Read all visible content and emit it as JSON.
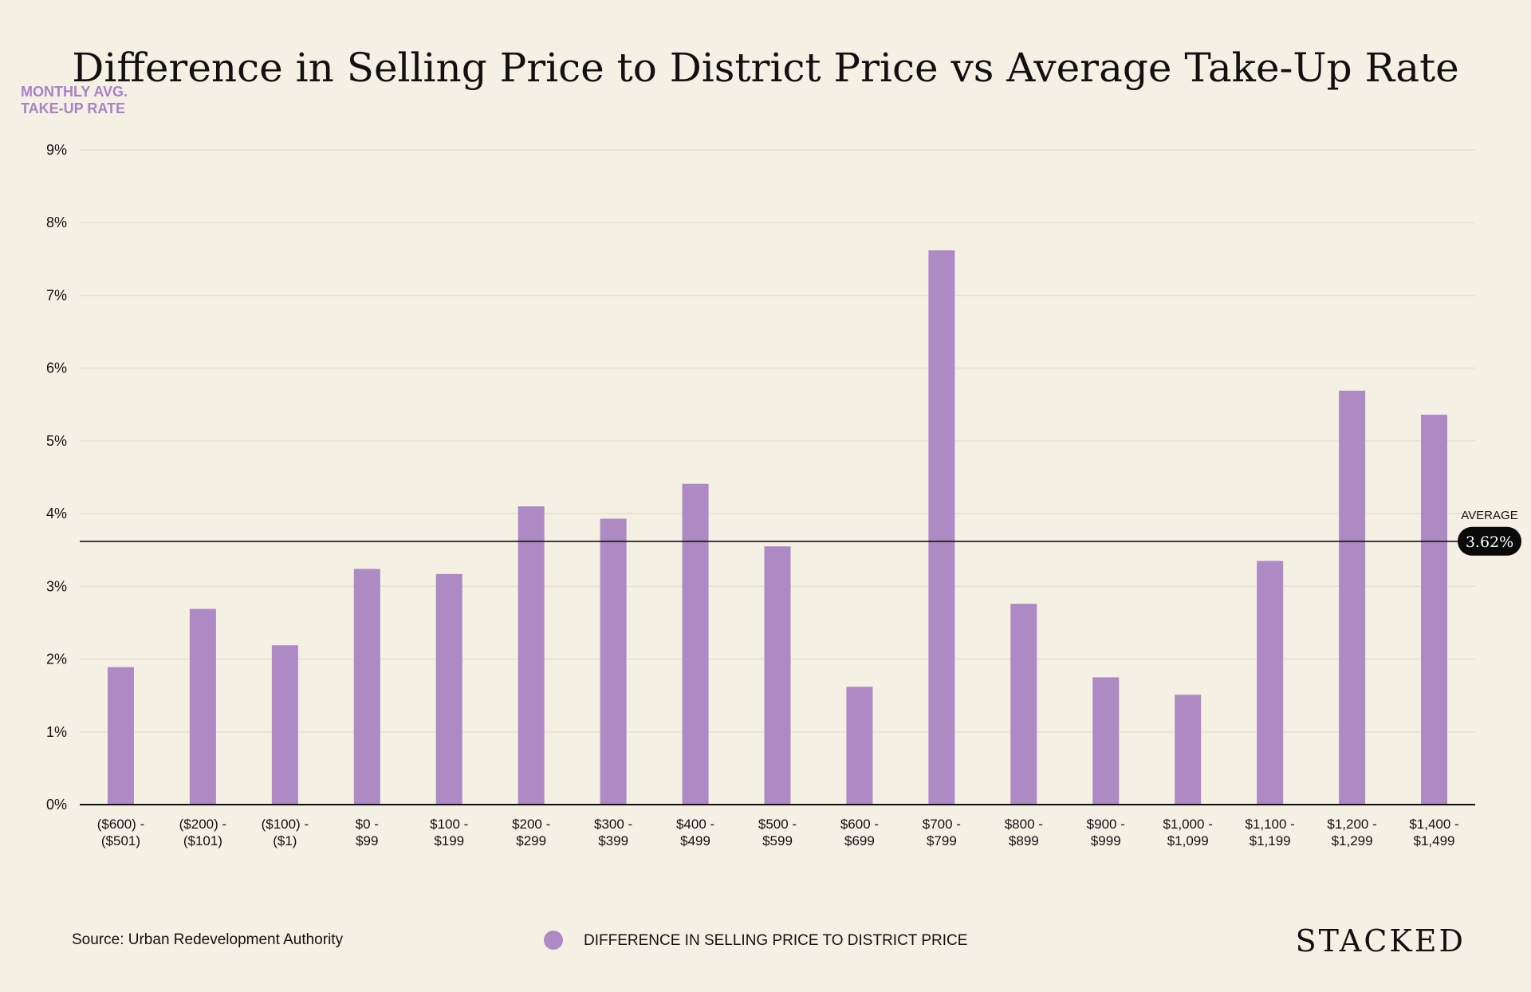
{
  "chart_data": {
    "type": "bar",
    "title": "Difference in Selling Price to District Price vs Average Take-Up Rate",
    "ylabel_lines": [
      "MONTHLY AVG.",
      "TAKE-UP RATE"
    ],
    "xlabel": "",
    "ylim": [
      0,
      9
    ],
    "yticks": [
      0,
      1,
      2,
      3,
      4,
      5,
      6,
      7,
      8,
      9
    ],
    "ytick_suffix": "%",
    "grid": true,
    "categories": [
      [
        "($600) -",
        "($501)"
      ],
      [
        "($200) -",
        "($101)"
      ],
      [
        "($100) -",
        "($1)"
      ],
      [
        "$0 -",
        "$99"
      ],
      [
        "$100 -",
        "$199"
      ],
      [
        "$200 -",
        "$299"
      ],
      [
        "$300 -",
        "$399"
      ],
      [
        "$400 -",
        "$499"
      ],
      [
        "$500 -",
        "$599"
      ],
      [
        "$600 -",
        "$699"
      ],
      [
        "$700 -",
        "$799"
      ],
      [
        "$800 -",
        "$899"
      ],
      [
        "$900 -",
        "$999"
      ],
      [
        "$1,000 -",
        "$1,099"
      ],
      [
        "$1,100 -",
        "$1,199"
      ],
      [
        "$1,200 -",
        "$1,299"
      ],
      [
        "$1,400 -",
        "$1,499"
      ]
    ],
    "series": [
      {
        "name": "DIFFERENCE IN SELLING PRICE TO DISTRICT PRICE",
        "color": "#ad8ac4",
        "values": [
          1.89,
          2.69,
          2.19,
          3.24,
          3.17,
          4.1,
          3.93,
          4.41,
          3.55,
          1.62,
          7.62,
          2.76,
          1.75,
          1.51,
          3.35,
          5.69,
          5.36
        ]
      }
    ],
    "average": {
      "label": "AVERAGE",
      "value": 3.62,
      "display": "3.62%"
    },
    "legend_position": "bottom-center"
  },
  "footer": {
    "source": "Source: Urban Redevelopment Authority",
    "brand": "STACKED"
  },
  "colors": {
    "background": "#f5f0e4",
    "accent": "#ad8ac4",
    "ylabel": "#a982c6",
    "grid": "#e6e0d2",
    "axis": "#111111"
  }
}
